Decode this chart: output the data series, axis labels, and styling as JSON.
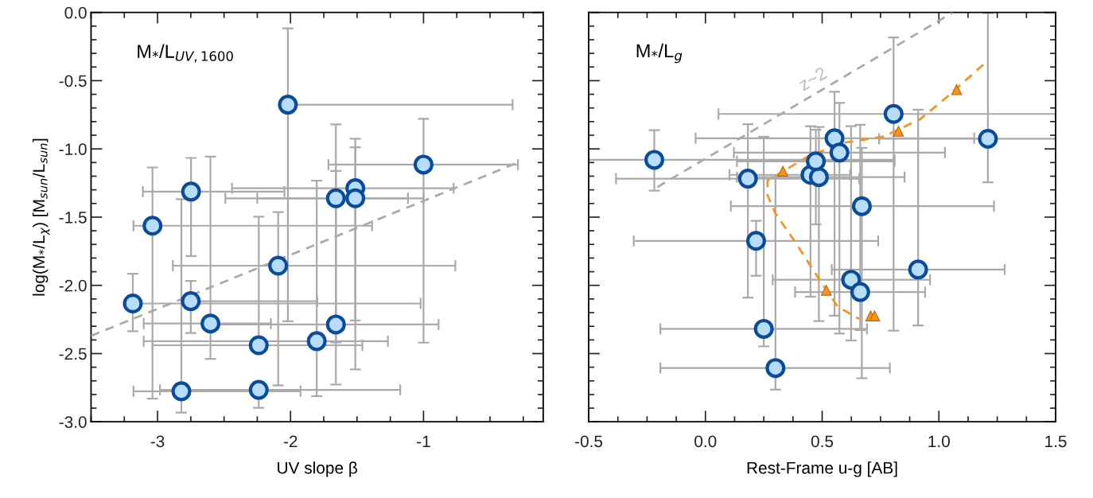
{
  "chart_data": [
    {
      "type": "scatter",
      "xlabel": "UV slope β",
      "ylabel": "log(M$_{*}$/L$_{χ}$) [M$_{sun}$/L$_{sun}$]",
      "annotations": [
        "M$_{*}$/L$_{UV,1600}$"
      ],
      "xlim": [
        -3.5,
        -0.1
      ],
      "ylim": [
        -3.0,
        0.0
      ],
      "xticks": [
        -3,
        -2,
        -1
      ],
      "yticks": [
        {
          "value": 0,
          "label": "0.0"
        },
        -0.5,
        {
          "value": -1,
          "label": "-1.0"
        },
        -1.5,
        {
          "value": -2,
          "label": "-2.0"
        },
        -2.5,
        {
          "value": -3,
          "label": "-3.0"
        }
      ],
      "grid": false,
      "legend": false,
      "series": [
        {
          "type": "scatter",
          "marker": "circle",
          "color": "#b8dcfb",
          "x": [
            -2.02,
            -1.0,
            -2.748,
            -1.513,
            -1.659,
            -1.513,
            -3.038,
            -2.093,
            -3.186,
            -2.75,
            -2.602,
            -1.659,
            -1.803,
            -2.239,
            -2.239,
            -2.821
          ],
          "values": [
            -0.676,
            -1.115,
            -1.313,
            -1.288,
            -1.362,
            -1.362,
            -1.563,
            -1.856,
            -2.133,
            -2.116,
            -2.28,
            -2.287,
            -2.409,
            -2.439,
            -2.766,
            -2.776
          ],
          "xerrors": [
            [
              -2.02,
              -0.33
            ],
            [
              -1.715,
              -0.29
            ],
            [
              -3.11,
              -2.046
            ],
            [
              -2.44,
              -0.774
            ],
            [
              -2.49,
              -1.117
            ],
            [
              -2.25,
              -1.0
            ],
            [
              -3.181,
              -1.387
            ],
            [
              -2.885,
              -0.761
            ],
            [
              -3.186,
              -1.022
            ],
            [
              -2.75,
              -1.799
            ],
            [
              -3.104,
              -2.148
            ],
            [
              -2.57,
              -0.887
            ],
            [
              -3.104,
              -1.268
            ],
            [
              -3.038,
              -1.46
            ],
            [
              -2.982,
              -1.175
            ],
            [
              -3.181,
              -1.925
            ]
          ],
          "errors": [
            [
              -2.263,
              -0.116
            ],
            [
              -2.42,
              -0.78
            ],
            [
              -1.785,
              -1.066
            ],
            [
              -2.616,
              -0.925
            ],
            [
              -2.727,
              -0.82
            ],
            [
              -2.257,
              -0.988
            ],
            [
              -2.83,
              -1.136
            ],
            [
              -2.733,
              -1.463
            ],
            [
              -2.336,
              -1.915
            ],
            [
              -2.35,
              -1.968
            ],
            [
              -2.539,
              -1.056
            ],
            [
              -2.418,
              -1.161
            ],
            [
              -2.812,
              -1.233
            ],
            [
              -2.439,
              -1.497
            ],
            [
              -2.897,
              -2.766
            ],
            [
              -2.932,
              -1.368
            ]
          ]
        },
        {
          "type": "line",
          "line_style": "dashed",
          "color": "#aaaaaa",
          "x": [
            -3.5,
            -0.29
          ],
          "values": [
            -2.37,
            -1.1
          ]
        }
      ]
    },
    {
      "type": "scatter",
      "xlabel": "Rest-Frame u-g [AB]",
      "annotations": [
        "M$_{*}$/L$_{g}$",
        "z~2"
      ],
      "xlim": [
        -0.5,
        1.5
      ],
      "ylim": [
        -3.0,
        0.0
      ],
      "xticks": [
        -0.5,
        {
          "value": 0,
          "label": "0.0"
        },
        0.5,
        {
          "value": 1,
          "label": "1.0"
        },
        1.5
      ],
      "yticks": [
        0,
        -0.5,
        -1,
        -1.5,
        -2,
        -2.5,
        -3
      ],
      "tick_labels": "x",
      "grid": false,
      "legend": false,
      "series": [
        {
          "type": "line",
          "line_style": "dashed",
          "color": "#aaaaaa",
          "x": [
            -0.206,
            1.06
          ],
          "values": [
            -1.28,
            0.0
          ]
        },
        {
          "type": "line",
          "line_style": "dashed",
          "color": "#f7941d",
          "x": [
            1.19,
            1.039,
            0.921,
            0.764,
            0.594,
            0.436,
            0.345,
            0.266,
            0.266,
            0.299,
            0.384,
            0.489,
            0.567,
            0.659
          ],
          "values": [
            -0.382,
            -0.613,
            -0.78,
            -0.91,
            -0.954,
            -1.058,
            -1.152,
            -1.232,
            -1.34,
            -1.47,
            -1.681,
            -1.96,
            -2.157,
            -2.246
          ]
        },
        {
          "type": "scatter",
          "marker": "circle",
          "color": "#b8dcfb",
          "x": [
            -0.219,
            0.182,
            0.45,
            0.486,
            0.473,
            0.553,
            0.574,
            0.806,
            1.21,
            0.67,
            0.217,
            0.911,
            0.624,
            0.663,
            0.25,
            0.3
          ],
          "values": [
            -1.08,
            -1.218,
            -1.19,
            -1.207,
            -1.091,
            -0.922,
            -1.027,
            -0.744,
            -0.926,
            -1.42,
            -1.674,
            -1.884,
            -1.959,
            -2.049,
            -2.319,
            -2.606
          ],
          "xerrors": [
            [
              -0.5,
              0.81
            ],
            [
              -0.383,
              0.659
            ],
            [
              0.103,
              0.62
            ],
            [
              0.135,
              0.853
            ],
            [
              0.135,
              0.81
            ],
            [
              -0.042,
              1.151
            ],
            [
              0.122,
              1.026
            ],
            [
              0.056,
              1.5
            ],
            [
              0.744,
              1.5
            ],
            [
              0.109,
              1.236
            ],
            [
              -0.307,
              0.74
            ],
            [
              0.541,
              1.282
            ],
            [
              0.288,
              0.962
            ],
            [
              0.384,
              0.941
            ],
            [
              -0.193,
              0.692
            ],
            [
              -0.193,
              0.79
            ]
          ],
          "errors": [
            [
              -1.306,
              -0.863
            ],
            [
              -2.09,
              -0.819
            ],
            [
              -2.083,
              -0.833
            ],
            [
              -2.262,
              -0.84
            ],
            [
              -1.553,
              -0.86
            ],
            [
              -2.222,
              -0.582
            ],
            [
              -2.353,
              -0.663
            ],
            [
              -2.332,
              -0.183
            ],
            [
              -1.244,
              -0.005
            ],
            [
              -2.681,
              -0.992
            ],
            [
              -1.93,
              -1.527
            ],
            [
              -2.294,
              -0.713
            ],
            [
              -2.404,
              -0.834
            ],
            [
              -2.328,
              -0.823
            ],
            [
              -2.447,
              -0.911
            ],
            [
              -2.764,
              -1.206
            ]
          ]
        },
        {
          "type": "scatter",
          "marker": "triangle",
          "color": "#f7941d",
          "x": [
            0.332,
            0.827,
            1.076,
            0.518,
            0.708,
            0.725
          ],
          "values": [
            -1.163,
            -0.871,
            -0.566,
            -2.036,
            -2.224,
            -2.224
          ]
        }
      ]
    }
  ]
}
